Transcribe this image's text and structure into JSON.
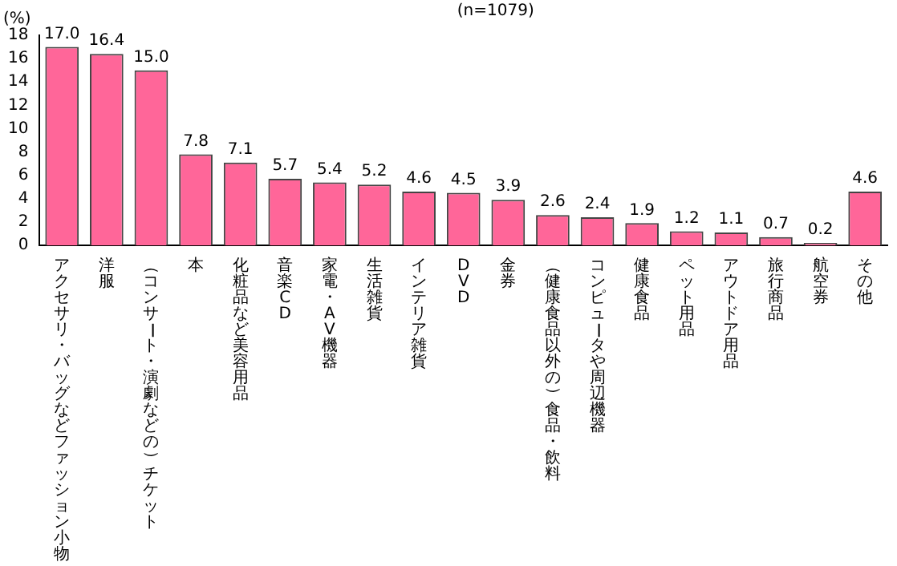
{
  "chart_data": {
    "type": "bar",
    "subtitle": "(n=1079)",
    "ylabel": "(%)",
    "categories": [
      "アクセサリ・バッグなどファッション小物",
      "洋服",
      "（コンサート・演劇などの）チケット",
      "本",
      "化粧品など美容用品",
      "音楽CD",
      "家電・AV機器",
      "生活雑貨",
      "インテリア雑貨",
      "DVD",
      "金券",
      "（健康食品以外の）食品・飲料",
      "コンピュータや周辺機器",
      "健康食品",
      "ペット用品",
      "アウトドア用品",
      "旅行商品",
      "航空券",
      "その他"
    ],
    "values": [
      17.0,
      16.4,
      15.0,
      7.8,
      7.1,
      5.7,
      5.4,
      5.2,
      4.6,
      4.5,
      3.9,
      2.6,
      2.4,
      1.9,
      1.2,
      1.1,
      0.7,
      0.2,
      4.6
    ],
    "value_labels": [
      "17.0",
      "16.4",
      "15.0",
      "7.8",
      "7.1",
      "5.7",
      "5.4",
      "5.2",
      "4.6",
      "4.5",
      "3.9",
      "2.6",
      "2.4",
      "1.9",
      "1.2",
      "1.1",
      "0.7",
      "0.2",
      "4.6"
    ],
    "color": "#ff6699",
    "ylim": [
      0,
      18
    ],
    "yticks": [
      0,
      2,
      4,
      6,
      8,
      10,
      12,
      14,
      16,
      18
    ],
    "grid": false,
    "legend": false
  }
}
